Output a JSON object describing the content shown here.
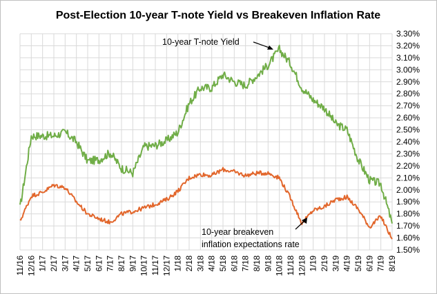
{
  "chart_data": {
    "type": "line",
    "title": "Post-Election 10-year T-note Yield vs Breakeven Inflation Rate",
    "ylim": [
      1.5,
      3.3
    ],
    "y_ticks": [
      "1.50%",
      "1.60%",
      "1.70%",
      "1.80%",
      "1.90%",
      "2.00%",
      "2.10%",
      "2.20%",
      "2.30%",
      "2.40%",
      "2.50%",
      "2.60%",
      "2.70%",
      "2.80%",
      "2.90%",
      "3.00%",
      "3.10%",
      "3.20%",
      "3.30%"
    ],
    "y_axis_side": "right",
    "categories": [
      "11/16",
      "12/16",
      "1/17",
      "2/17",
      "3/17",
      "4/17",
      "5/17",
      "6/17",
      "7/17",
      "8/17",
      "9/17",
      "10/17",
      "11/17",
      "12/17",
      "1/18",
      "2/18",
      "3/18",
      "4/18",
      "5/18",
      "6/18",
      "7/18",
      "8/18",
      "9/18",
      "10/18",
      "11/18",
      "12/18",
      "1/19",
      "2/19",
      "3/19",
      "4/19",
      "5/19",
      "6/19",
      "7/19",
      "8/19"
    ],
    "grid": "vertical-and-horizontal",
    "series": [
      {
        "name": "10-year T-note Yield",
        "color": "#70ad47",
        "values": [
          1.85,
          2.45,
          2.45,
          2.45,
          2.48,
          2.4,
          2.24,
          2.25,
          2.31,
          2.18,
          2.14,
          2.36,
          2.37,
          2.41,
          2.48,
          2.72,
          2.85,
          2.85,
          2.96,
          2.9,
          2.87,
          2.95,
          3.04,
          3.17,
          3.05,
          2.85,
          2.75,
          2.68,
          2.55,
          2.5,
          2.25,
          2.08,
          2.05,
          1.72
        ]
      },
      {
        "name": "10-year breakeven inflation expectations rate",
        "color": "#e2662b",
        "values": [
          1.74,
          1.95,
          1.98,
          2.04,
          2.02,
          1.9,
          1.8,
          1.76,
          1.73,
          1.8,
          1.82,
          1.85,
          1.88,
          1.92,
          1.99,
          2.1,
          2.13,
          2.12,
          2.17,
          2.15,
          2.12,
          2.14,
          2.14,
          2.1,
          1.93,
          1.72,
          1.83,
          1.86,
          1.92,
          1.94,
          1.84,
          1.69,
          1.78,
          1.59
        ]
      }
    ],
    "annotations": [
      {
        "text": "10-year T-note Yield",
        "points_to": "10-year T-note Yield"
      },
      {
        "text": "10-year breakeven",
        "points_to": "10-year breakeven inflation expectations rate"
      },
      {
        "text": "inflation expectations rate",
        "points_to": "10-year breakeven inflation expectations rate"
      }
    ]
  }
}
